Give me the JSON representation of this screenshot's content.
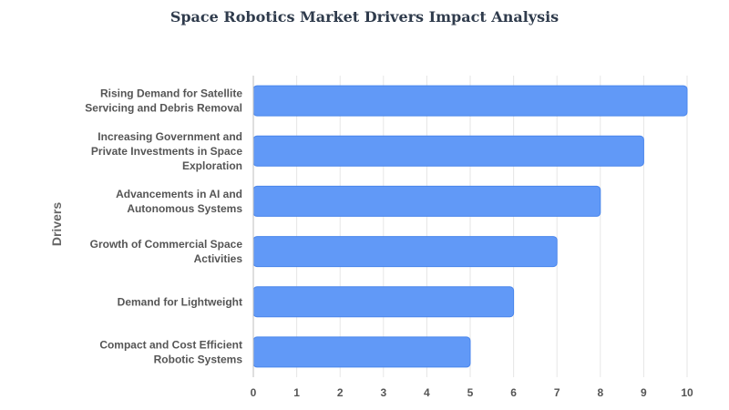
{
  "chart_data": {
    "type": "bar",
    "orientation": "horizontal",
    "title": "Space Robotics Market Drivers Impact Analysis",
    "xlabel": "",
    "ylabel": "Drivers",
    "categories": [
      [
        "Rising Demand for Satellite",
        "Servicing and Debris Removal"
      ],
      [
        "Increasing Government and",
        "Private Investments in Space",
        "Exploration"
      ],
      [
        "Advancements in AI and",
        "Autonomous Systems"
      ],
      [
        "Growth of Commercial Space",
        "Activities"
      ],
      [
        "Demand for Lightweight"
      ],
      [
        "Compact and Cost Efficient",
        "Robotic Systems"
      ]
    ],
    "values": [
      10,
      9,
      8,
      7,
      6,
      5
    ],
    "xlim": [
      0,
      10
    ],
    "xticks": [
      "0",
      "1",
      "2",
      "3",
      "4",
      "5",
      "6",
      "7",
      "8",
      "9",
      "10"
    ],
    "grid": true,
    "bar_color": "#6199f7",
    "bar_border_color": "#4a86ec"
  }
}
